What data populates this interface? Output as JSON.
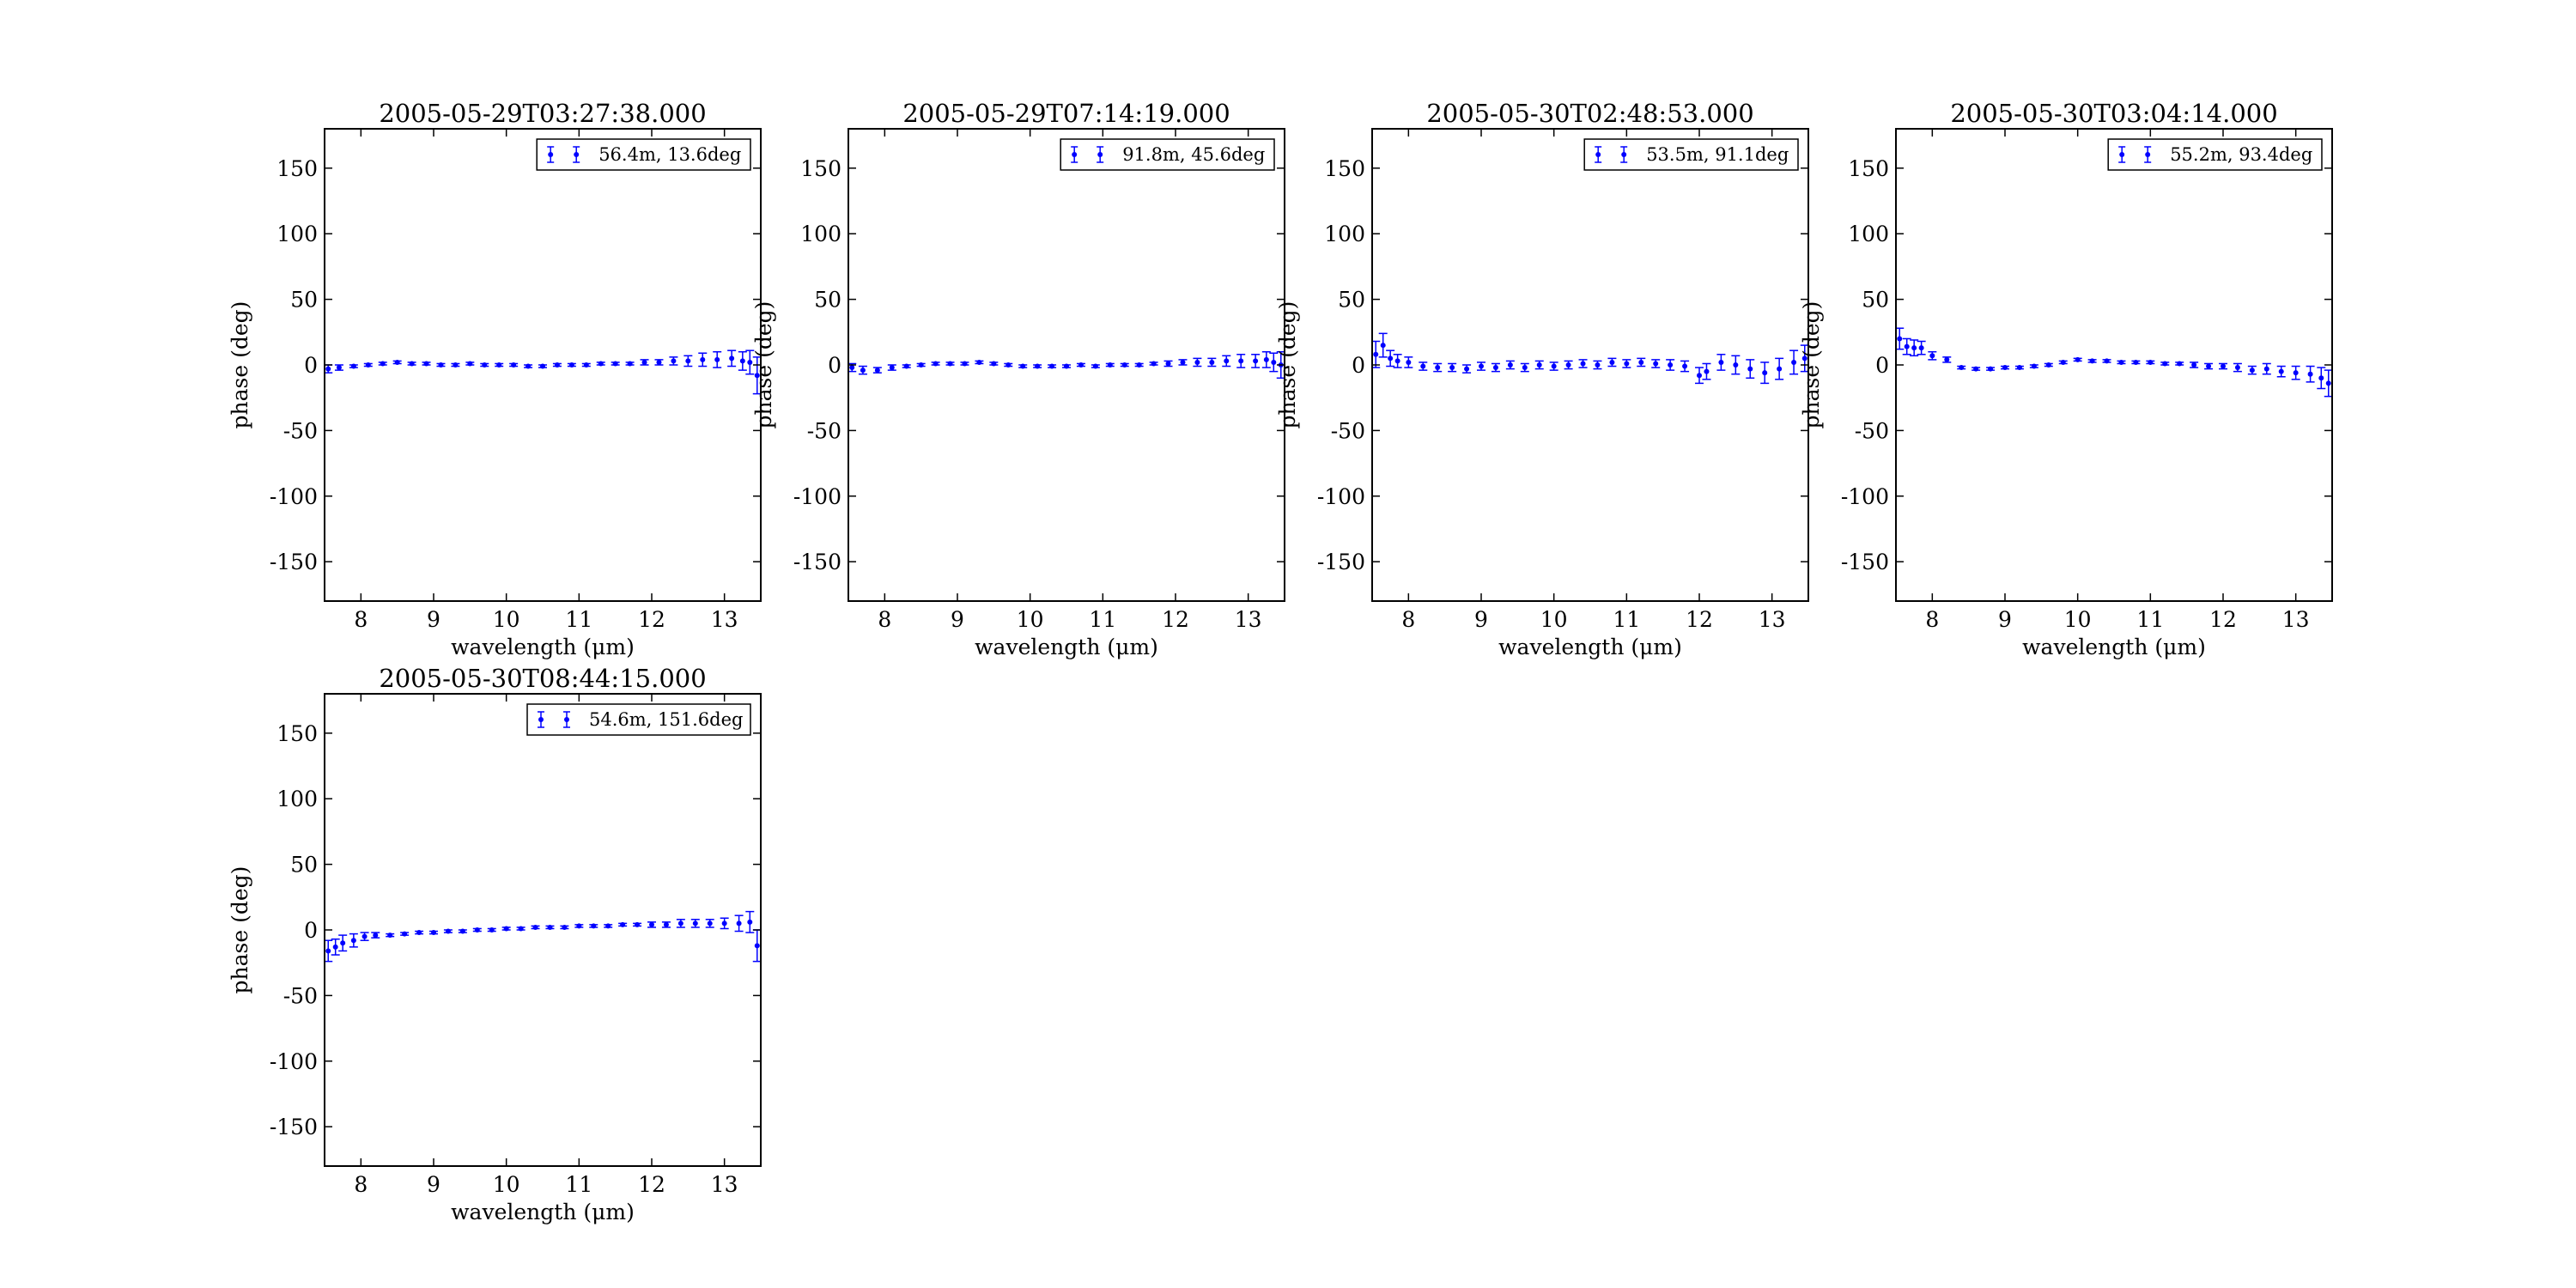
{
  "figure": {
    "background": "#ffffff",
    "series_color": "#0000ff"
  },
  "chart_data": [
    {
      "type": "scatter",
      "title": "2005-05-29T03:27:38.000",
      "xlabel": "wavelength (μm)",
      "ylabel": "phase (deg)",
      "xlim": [
        7.5,
        13.5
      ],
      "ylim": [
        -180,
        180
      ],
      "xticks": [
        8,
        9,
        10,
        11,
        12,
        13
      ],
      "yticks": [
        150,
        100,
        50,
        0,
        -50,
        -100,
        -150
      ],
      "grid": false,
      "legend_position": "upper right",
      "series": [
        {
          "name": "56.4m, 13.6deg",
          "error_bars": true,
          "x": [
            7.55,
            7.7,
            7.9,
            8.1,
            8.3,
            8.5,
            8.7,
            8.9,
            9.1,
            9.3,
            9.5,
            9.7,
            9.9,
            10.1,
            10.3,
            10.5,
            10.7,
            10.9,
            11.1,
            11.3,
            11.5,
            11.7,
            11.9,
            12.1,
            12.3,
            12.5,
            12.7,
            12.9,
            13.1,
            13.25,
            13.35,
            13.45
          ],
          "y": [
            -3,
            -2,
            -1,
            0,
            1,
            2,
            1,
            1,
            0,
            0,
            1,
            0,
            0,
            0,
            -1,
            -1,
            0,
            0,
            0,
            1,
            1,
            1,
            2,
            2,
            3,
            3,
            4,
            4,
            5,
            3,
            2,
            -8
          ],
          "yerr": [
            3,
            2,
            1,
            1,
            1,
            1,
            1,
            1,
            1,
            1,
            1,
            1,
            1,
            1,
            1,
            1,
            1,
            1,
            1,
            1,
            1,
            1,
            2,
            2,
            3,
            4,
            5,
            6,
            6,
            7,
            9,
            14
          ]
        }
      ]
    },
    {
      "type": "scatter",
      "title": "2005-05-29T07:14:19.000",
      "xlabel": "wavelength (μm)",
      "ylabel": "phase (deg)",
      "xlim": [
        7.5,
        13.5
      ],
      "ylim": [
        -180,
        180
      ],
      "xticks": [
        8,
        9,
        10,
        11,
        12,
        13
      ],
      "yticks": [
        150,
        100,
        50,
        0,
        -50,
        -100,
        -150
      ],
      "grid": false,
      "legend_position": "upper right",
      "series": [
        {
          "name": "91.8m, 45.6deg",
          "error_bars": true,
          "x": [
            7.55,
            7.7,
            7.9,
            8.1,
            8.3,
            8.5,
            8.7,
            8.9,
            9.1,
            9.3,
            9.5,
            9.7,
            9.9,
            10.1,
            10.3,
            10.5,
            10.7,
            10.9,
            11.1,
            11.3,
            11.5,
            11.7,
            11.9,
            12.1,
            12.3,
            12.5,
            12.7,
            12.9,
            13.1,
            13.25,
            13.35,
            13.45
          ],
          "y": [
            -2,
            -4,
            -4,
            -2,
            -1,
            0,
            1,
            1,
            1,
            2,
            1,
            0,
            -1,
            -1,
            -1,
            -1,
            0,
            -1,
            0,
            0,
            0,
            1,
            1,
            2,
            2,
            2,
            3,
            3,
            3,
            4,
            2,
            0
          ],
          "yerr": [
            3,
            3,
            2,
            2,
            1,
            1,
            1,
            1,
            1,
            1,
            1,
            1,
            1,
            1,
            1,
            1,
            1,
            1,
            1,
            1,
            1,
            1,
            2,
            2,
            3,
            3,
            4,
            5,
            5,
            6,
            7,
            10
          ]
        }
      ]
    },
    {
      "type": "scatter",
      "title": "2005-05-30T02:48:53.000",
      "xlabel": "wavelength (μm)",
      "ylabel": "phase (deg)",
      "xlim": [
        7.5,
        13.5
      ],
      "ylim": [
        -180,
        180
      ],
      "xticks": [
        8,
        9,
        10,
        11,
        12,
        13
      ],
      "yticks": [
        150,
        100,
        50,
        0,
        -50,
        -100,
        -150
      ],
      "grid": false,
      "legend_position": "upper right",
      "series": [
        {
          "name": "53.5m, 91.1deg",
          "error_bars": true,
          "x": [
            7.55,
            7.65,
            7.75,
            7.85,
            8.0,
            8.2,
            8.4,
            8.6,
            8.8,
            9.0,
            9.2,
            9.4,
            9.6,
            9.8,
            10.0,
            10.2,
            10.4,
            10.6,
            10.8,
            11.0,
            11.2,
            11.4,
            11.6,
            11.8,
            12.0,
            12.1,
            12.3,
            12.5,
            12.7,
            12.9,
            13.1,
            13.3,
            13.45
          ],
          "y": [
            8,
            15,
            5,
            3,
            2,
            -1,
            -2,
            -2,
            -3,
            -1,
            -2,
            0,
            -2,
            0,
            -1,
            0,
            1,
            0,
            2,
            1,
            2,
            1,
            0,
            -1,
            -8,
            -5,
            2,
            0,
            -3,
            -6,
            -3,
            2,
            5
          ],
          "yerr": [
            10,
            9,
            6,
            5,
            4,
            3,
            3,
            3,
            3,
            3,
            3,
            3,
            3,
            3,
            3,
            3,
            3,
            3,
            3,
            3,
            3,
            3,
            4,
            4,
            6,
            6,
            6,
            7,
            7,
            8,
            8,
            9,
            10
          ]
        }
      ]
    },
    {
      "type": "scatter",
      "title": "2005-05-30T03:04:14.000",
      "xlabel": "wavelength (μm)",
      "ylabel": "phase (deg)",
      "xlim": [
        7.5,
        13.5
      ],
      "ylim": [
        -180,
        180
      ],
      "xticks": [
        8,
        9,
        10,
        11,
        12,
        13
      ],
      "yticks": [
        150,
        100,
        50,
        0,
        -50,
        -100,
        -150
      ],
      "grid": false,
      "legend_position": "upper right",
      "series": [
        {
          "name": "55.2m, 93.4deg",
          "error_bars": true,
          "x": [
            7.55,
            7.65,
            7.75,
            7.85,
            8.0,
            8.2,
            8.4,
            8.6,
            8.8,
            9.0,
            9.2,
            9.4,
            9.6,
            9.8,
            10.0,
            10.2,
            10.4,
            10.6,
            10.8,
            11.0,
            11.2,
            11.4,
            11.6,
            11.8,
            12.0,
            12.2,
            12.4,
            12.6,
            12.8,
            13.0,
            13.2,
            13.35,
            13.45
          ],
          "y": [
            20,
            14,
            13,
            13,
            7,
            4,
            -2,
            -3,
            -3,
            -2,
            -2,
            -1,
            0,
            2,
            4,
            3,
            3,
            2,
            2,
            2,
            1,
            1,
            0,
            -1,
            -1,
            -2,
            -4,
            -3,
            -5,
            -6,
            -7,
            -10,
            -14
          ],
          "yerr": [
            8,
            6,
            6,
            5,
            3,
            2,
            1,
            1,
            1,
            1,
            1,
            1,
            1,
            1,
            1,
            1,
            1,
            1,
            1,
            1,
            1,
            1,
            2,
            2,
            2,
            3,
            3,
            4,
            4,
            5,
            6,
            8,
            10
          ]
        }
      ]
    },
    {
      "type": "scatter",
      "title": "2005-05-30T08:44:15.000",
      "xlabel": "wavelength (μm)",
      "ylabel": "phase (deg)",
      "xlim": [
        7.5,
        13.5
      ],
      "ylim": [
        -180,
        180
      ],
      "xticks": [
        8,
        9,
        10,
        11,
        12,
        13
      ],
      "yticks": [
        150,
        100,
        50,
        0,
        -50,
        -100,
        -150
      ],
      "grid": false,
      "legend_position": "upper right",
      "series": [
        {
          "name": "54.6m, 151.6deg",
          "error_bars": true,
          "x": [
            7.55,
            7.65,
            7.75,
            7.9,
            8.05,
            8.2,
            8.4,
            8.6,
            8.8,
            9.0,
            9.2,
            9.4,
            9.6,
            9.8,
            10.0,
            10.2,
            10.4,
            10.6,
            10.8,
            11.0,
            11.2,
            11.4,
            11.6,
            11.8,
            12.0,
            12.2,
            12.4,
            12.6,
            12.8,
            13.0,
            13.2,
            13.35,
            13.45
          ],
          "y": [
            -16,
            -13,
            -10,
            -8,
            -5,
            -4,
            -4,
            -3,
            -2,
            -2,
            -1,
            -1,
            0,
            0,
            1,
            1,
            2,
            2,
            2,
            3,
            3,
            3,
            4,
            4,
            4,
            4,
            5,
            5,
            5,
            5,
            5,
            6,
            -12
          ],
          "yerr": [
            8,
            6,
            6,
            5,
            3,
            2,
            1,
            1,
            1,
            1,
            1,
            1,
            1,
            1,
            1,
            1,
            1,
            1,
            1,
            1,
            1,
            1,
            1,
            1,
            2,
            2,
            3,
            3,
            3,
            4,
            6,
            8,
            12
          ]
        }
      ]
    }
  ]
}
